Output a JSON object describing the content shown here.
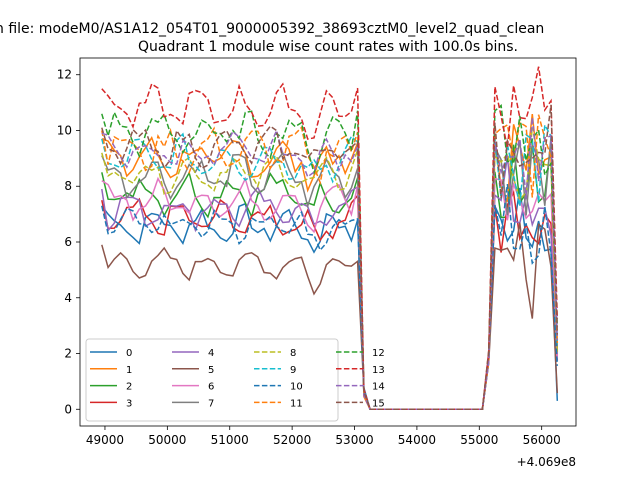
{
  "chart_data": {
    "type": "line",
    "suptitle": "n file: modeM0/AS1A12_054T01_9000005392_38693cztM0_level2_quad_clean",
    "title": "Quadrant 1 module wise count rates with 100.0s bins.",
    "xlabel": "",
    "ylabel": "",
    "x_offset_label": "+4.069e8",
    "xlim": [
      48600,
      56550
    ],
    "ylim": [
      -0.6,
      12.6
    ],
    "x_ticks": [
      49000,
      50000,
      51000,
      52000,
      53000,
      54000,
      55000,
      56000
    ],
    "x_tick_labels": [
      "49000",
      "50000",
      "51000",
      "52000",
      "53000",
      "54000",
      "55000",
      "56000"
    ],
    "y_ticks": [
      0,
      2,
      4,
      6,
      8,
      10,
      12
    ],
    "y_tick_labels": [
      "0",
      "2",
      "4",
      "6",
      "8",
      "10",
      "12"
    ],
    "legend": {
      "location": "lower-left",
      "columns": 4
    },
    "segments": [
      {
        "x_start": 48950,
        "x_end": 53050,
        "step": 100
      },
      {
        "x_start": 53150,
        "x_end": 53150,
        "step": 100
      },
      {
        "x_start": 53250,
        "x_end": 55050,
        "step": 100,
        "zero": true
      },
      {
        "x_start": 55150,
        "x_end": 56250,
        "step": 100
      }
    ],
    "series": [
      {
        "name": "0",
        "color": "#1f77b4",
        "dash": "solid",
        "base": 6.6,
        "amp": 0.45,
        "drop": 3.0
      },
      {
        "name": "1",
        "color": "#ff7f0e",
        "dash": "solid",
        "base": 9.0,
        "amp": 0.5,
        "drop": 3.3
      },
      {
        "name": "2",
        "color": "#2ca02c",
        "dash": "solid",
        "base": 7.8,
        "amp": 0.5,
        "drop": 2.8
      },
      {
        "name": "3",
        "color": "#d62728",
        "dash": "solid",
        "base": 6.8,
        "amp": 0.45,
        "drop": 2.4
      },
      {
        "name": "4",
        "color": "#9467bd",
        "dash": "solid",
        "base": 7.2,
        "amp": 0.45,
        "drop": 2.6
      },
      {
        "name": "5",
        "color": "#8c564b",
        "dash": "solid",
        "base": 5.2,
        "amp": 0.35,
        "drop": 2.2
      },
      {
        "name": "6",
        "color": "#e377c2",
        "dash": "solid",
        "base": 7.5,
        "amp": 0.45,
        "drop": 2.7
      },
      {
        "name": "7",
        "color": "#7f7f7f",
        "dash": "solid",
        "base": 8.4,
        "amp": 0.5,
        "drop": 3.0
      },
      {
        "name": "8",
        "color": "#bcbd22",
        "dash": "dashed",
        "base": 8.5,
        "amp": 0.45,
        "drop": 3.1
      },
      {
        "name": "9",
        "color": "#17becf",
        "dash": "dashed",
        "base": 9.0,
        "amp": 0.5,
        "drop": 3.2
      },
      {
        "name": "10",
        "color": "#1f77b4",
        "dash": "dashed",
        "base": 6.6,
        "amp": 0.4,
        "drop": 2.4
      },
      {
        "name": "11",
        "color": "#ff7f0e",
        "dash": "dashed",
        "base": 9.3,
        "amp": 0.5,
        "drop": 3.3
      },
      {
        "name": "12",
        "color": "#2ca02c",
        "dash": "dashed",
        "base": 9.9,
        "amp": 0.5,
        "drop": 3.3
      },
      {
        "name": "13",
        "color": "#d62728",
        "dash": "dashed",
        "base": 10.8,
        "amp": 0.5,
        "drop": 3.6
      },
      {
        "name": "14",
        "color": "#9467bd",
        "dash": "dashed",
        "base": 9.2,
        "amp": 0.45,
        "drop": 3.2
      },
      {
        "name": "15",
        "color": "#8c564b",
        "dash": "dashed",
        "base": 9.4,
        "amp": 0.45,
        "drop": 3.2
      }
    ]
  }
}
